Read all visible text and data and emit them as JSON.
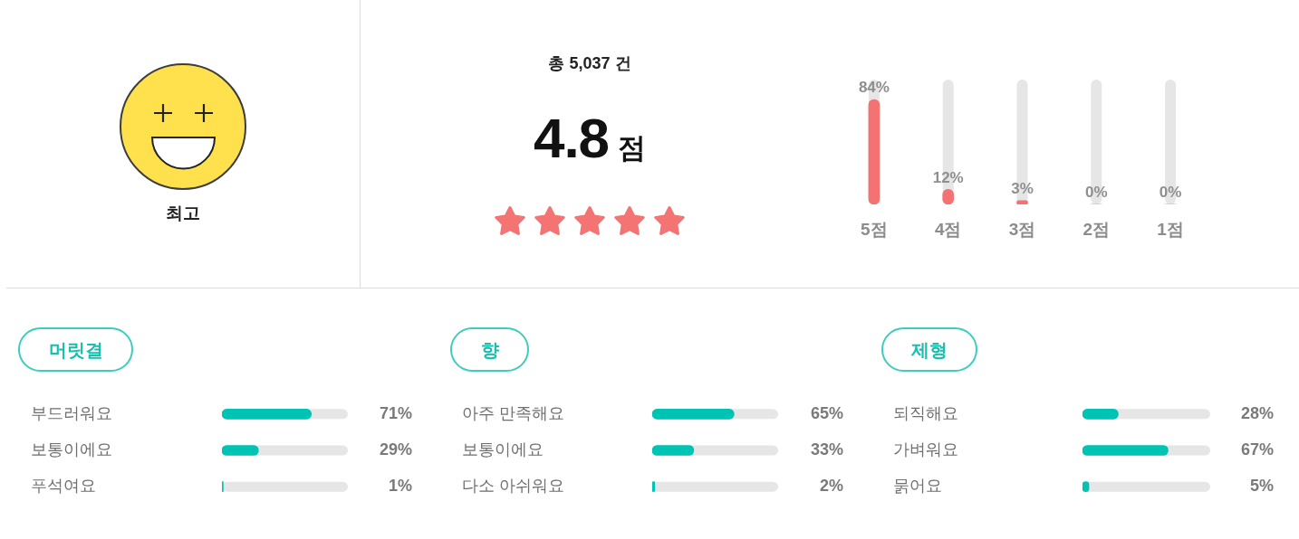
{
  "chart_data": [
    {
      "type": "other",
      "annotations": [
        "최고",
        "총 5,037 건",
        "4.8",
        "점"
      ]
    },
    {
      "type": "bar",
      "categories": [
        "5점",
        "4점",
        "3점",
        "2점",
        "1점"
      ],
      "values": [
        84,
        12,
        3,
        0,
        0
      ],
      "value_labels": [
        "84%",
        "12%",
        "3%",
        "0%",
        "0%"
      ],
      "color": "#f47272",
      "ylim": [
        0,
        100
      ],
      "tick_labels": "x"
    },
    {
      "type": "bar",
      "orientation": "horizontal",
      "title": "머릿결",
      "categories": [
        "부드러워요",
        "보통이에요",
        "푸석여요"
      ],
      "values": [
        71,
        29,
        1
      ],
      "value_labels": [
        "71%",
        "29%",
        "1%"
      ],
      "color": "#00c4b3",
      "xlim": [
        0,
        100
      ],
      "tick_labels": "y"
    },
    {
      "type": "bar",
      "orientation": "horizontal",
      "title": "향",
      "categories": [
        "아주 만족해요",
        "보통이에요",
        "다소 아쉬워요"
      ],
      "values": [
        65,
        33,
        2
      ],
      "value_labels": [
        "65%",
        "33%",
        "2%"
      ],
      "color": "#00c4b3",
      "xlim": [
        0,
        100
      ],
      "tick_labels": "y"
    },
    {
      "type": "bar",
      "orientation": "horizontal",
      "title": "제형",
      "categories": [
        "되직해요",
        "가벼워요",
        "묽어요"
      ],
      "values": [
        28,
        67,
        5
      ],
      "value_labels": [
        "28%",
        "67%",
        "5%"
      ],
      "color": "#00c4b3",
      "xlim": [
        0,
        100
      ],
      "tick_labels": "y"
    }
  ]
}
